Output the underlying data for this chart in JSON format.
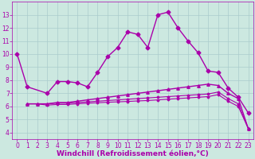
{
  "xlabel": "Windchill (Refroidissement éolien,°C)",
  "background_color": "#cce8e0",
  "grid_color": "#aacccc",
  "line_color": "#aa00aa",
  "xlim": [
    -0.5,
    23.5
  ],
  "ylim": [
    3.5,
    14.0
  ],
  "xticks": [
    0,
    1,
    2,
    3,
    4,
    5,
    6,
    7,
    8,
    9,
    10,
    11,
    12,
    13,
    14,
    15,
    16,
    17,
    18,
    19,
    20,
    21,
    22,
    23
  ],
  "yticks": [
    4,
    5,
    6,
    7,
    8,
    9,
    10,
    11,
    12,
    13
  ],
  "lines": [
    {
      "x": [
        0,
        1,
        3,
        4,
        5,
        6,
        7,
        8,
        9,
        10,
        11,
        12,
        13,
        14,
        15,
        16,
        17,
        18,
        19,
        20,
        21,
        22,
        23
      ],
      "y": [
        10.0,
        7.5,
        7.0,
        7.9,
        7.9,
        7.8,
        7.5,
        8.6,
        9.8,
        10.5,
        11.7,
        11.5,
        10.5,
        13.0,
        13.2,
        12.0,
        11.0,
        10.1,
        8.7,
        8.6,
        7.4,
        6.7,
        5.5
      ],
      "marker": "D",
      "markersize": 2.5,
      "linewidth": 1.0
    },
    {
      "x": [
        1,
        2,
        3,
        4,
        5,
        6,
        7,
        8,
        9,
        10,
        11,
        12,
        13,
        14,
        15,
        16,
        17,
        18,
        19,
        20,
        21,
        22,
        23
      ],
      "y": [
        6.2,
        6.2,
        6.2,
        6.3,
        6.3,
        6.4,
        6.5,
        6.6,
        6.7,
        6.8,
        6.9,
        7.0,
        7.1,
        7.2,
        7.3,
        7.4,
        7.5,
        7.6,
        7.7,
        7.6,
        7.0,
        6.6,
        4.3
      ],
      "marker": "^",
      "markersize": 2.5,
      "linewidth": 1.0
    },
    {
      "x": [
        1,
        2,
        3,
        4,
        5,
        6,
        7,
        8,
        9,
        10,
        11,
        12,
        13,
        14,
        15,
        16,
        17,
        18,
        19,
        20,
        21,
        22,
        23
      ],
      "y": [
        6.2,
        6.2,
        6.2,
        6.25,
        6.25,
        6.3,
        6.35,
        6.4,
        6.45,
        6.5,
        6.55,
        6.6,
        6.65,
        6.7,
        6.75,
        6.8,
        6.85,
        6.9,
        6.95,
        7.1,
        6.6,
        6.2,
        4.3
      ],
      "marker": "D",
      "markersize": 1.5,
      "linewidth": 0.8
    },
    {
      "x": [
        1,
        2,
        3,
        4,
        5,
        6,
        7,
        8,
        9,
        10,
        11,
        12,
        13,
        14,
        15,
        16,
        17,
        18,
        19,
        20,
        21,
        22,
        23
      ],
      "y": [
        6.2,
        6.2,
        6.1,
        6.15,
        6.15,
        6.2,
        6.25,
        6.28,
        6.32,
        6.35,
        6.38,
        6.42,
        6.45,
        6.5,
        6.55,
        6.6,
        6.65,
        6.7,
        6.75,
        6.9,
        6.4,
        6.0,
        4.3
      ],
      "marker": "D",
      "markersize": 1.5,
      "linewidth": 0.8
    }
  ],
  "tick_fontsize": 5.5,
  "label_fontsize": 6.5
}
